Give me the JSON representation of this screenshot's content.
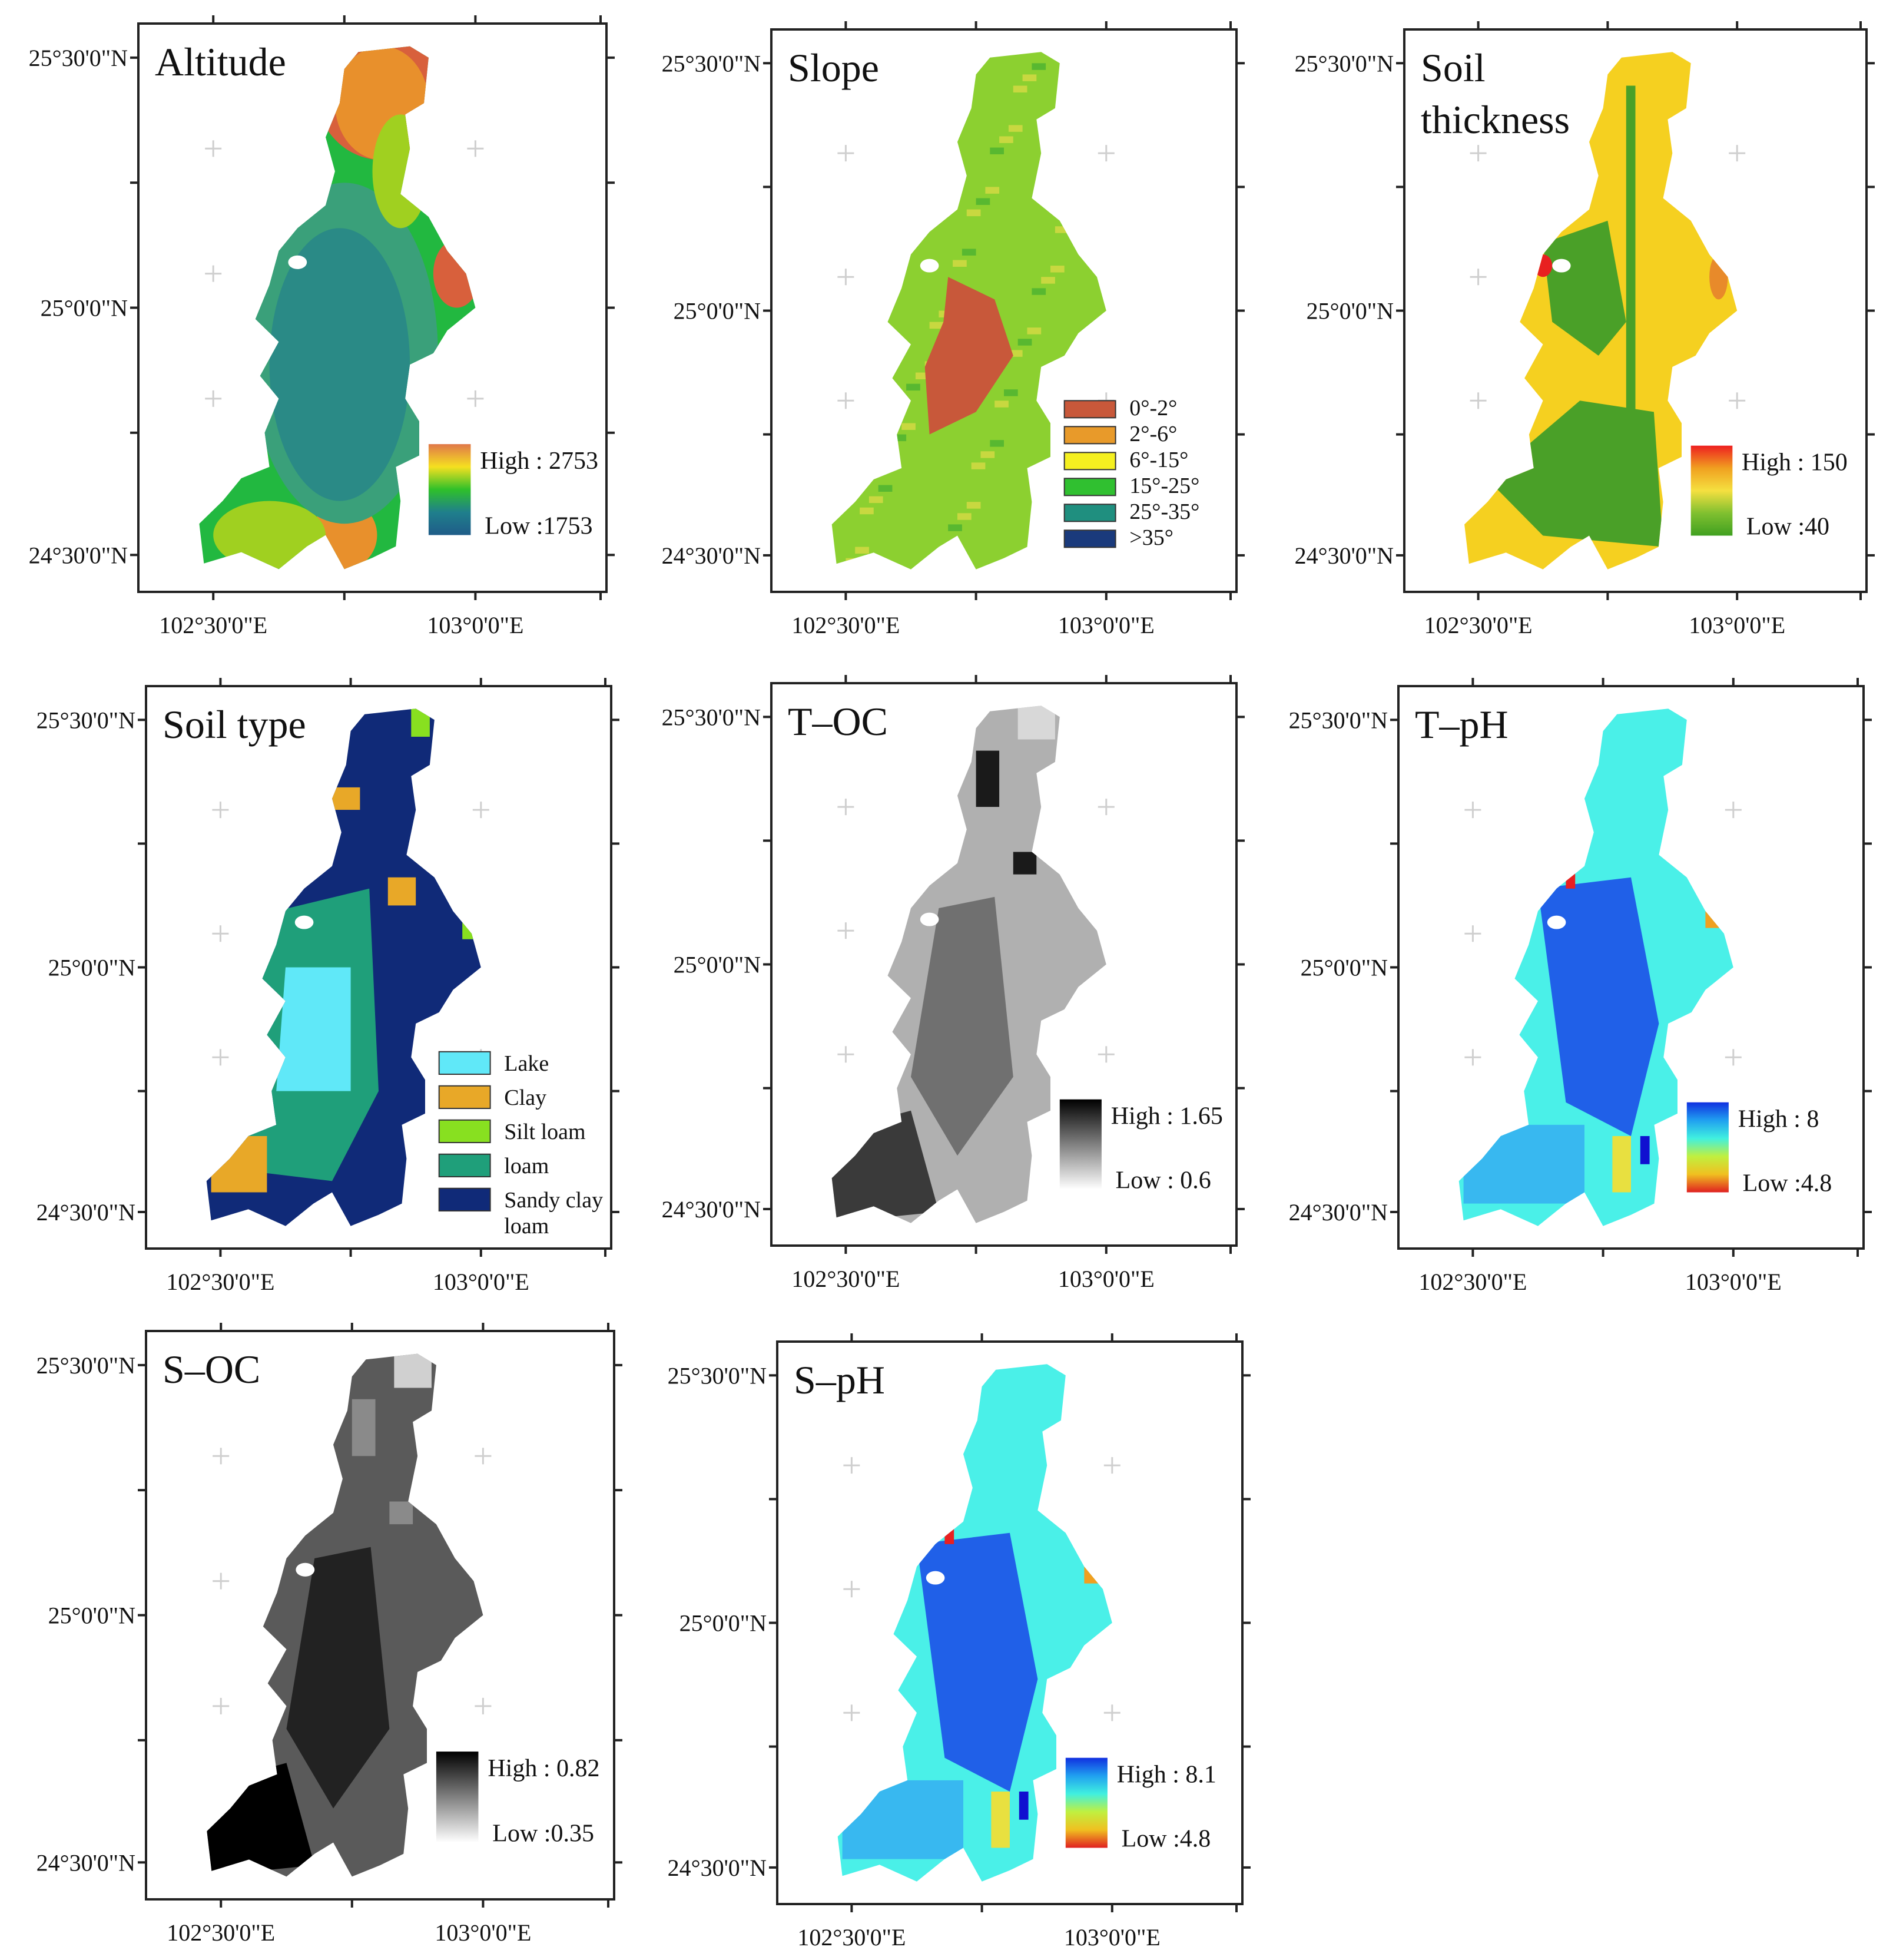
{
  "figure": {
    "panels": [
      {
        "id": "altitude",
        "title": [
          "Altitude"
        ],
        "lat_labels": [
          "25°30'0\"N",
          "25°0'0\"N",
          "24°30'0\"N"
        ],
        "lon_labels": [
          "102°30'0\"E",
          "103°0'0\"E"
        ],
        "legend": {
          "type": "gradient",
          "high": "High : 2753",
          "low": "Low :1753",
          "colors": [
            "#e0784a",
            "#f5e020",
            "#2fc02a",
            "#1f7f8c",
            "#1f5c88"
          ]
        },
        "fill": {
          "kind": "altitude",
          "colors": [
            "#2a8a86",
            "#3aa07a",
            "#22b840",
            "#a0d020",
            "#f0d020",
            "#e8902c",
            "#d8603c"
          ]
        }
      },
      {
        "id": "slope",
        "title": [
          "Slope"
        ],
        "lat_labels": [
          "25°30'0\"N",
          "25°0'0\"N",
          "24°30'0\"N"
        ],
        "lon_labels": [
          "102°30'0\"E",
          "103°0'0\"E"
        ],
        "legend": {
          "type": "classes",
          "items": [
            {
              "label": "0°-2°",
              "color": "#c8583a"
            },
            {
              "label": "2°-6°",
              "color": "#e89a2a"
            },
            {
              "label": "6°-15°",
              "color": "#f5f020"
            },
            {
              "label": "15°-25°",
              "color": "#30c030"
            },
            {
              "label": "25°-35°",
              "color": "#1f8f7f"
            },
            {
              "label": ">35°",
              "color": "#1a3a7c"
            }
          ]
        },
        "fill": {
          "kind": "slope",
          "colors": [
            "#8cd030",
            "#c8d840",
            "#58b830",
            "#c8583a"
          ]
        }
      },
      {
        "id": "soil_thickness",
        "title": [
          "Soil",
          "thickness"
        ],
        "lat_labels": [
          "25°30'0\"N",
          "25°0'0\"N",
          "24°30'0\"N"
        ],
        "lon_labels": [
          "102°30'0\"E",
          "103°0'0\"E"
        ],
        "legend": {
          "type": "gradient",
          "high": "High : 150",
          "low": "Low :40",
          "colors": [
            "#ee2020",
            "#f0a020",
            "#f5e040",
            "#80c030",
            "#40a020"
          ]
        },
        "fill": {
          "kind": "thickness",
          "colors": [
            "#f5d020",
            "#4aa028",
            "#e88a2a",
            "#e82020"
          ]
        }
      },
      {
        "id": "soil_type",
        "title": [
          "Soil type"
        ],
        "lat_labels": [
          "25°30'0\"N",
          "25°0'0\"N",
          "24°30'0\"N"
        ],
        "lon_labels": [
          "102°30'0\"E",
          "103°0'0\"E"
        ],
        "legend": {
          "type": "classes",
          "items": [
            {
              "label": "Lake",
              "color": "#60e8f8"
            },
            {
              "label": "Clay",
              "color": "#e8a828"
            },
            {
              "label": "Silt loam",
              "color": "#88e020"
            },
            {
              "label": "loam",
              "color": "#1f9f7a"
            },
            {
              "label": "Sandy clay",
              "label2": "loam",
              "color": "#102a78"
            }
          ]
        },
        "fill": {
          "kind": "soiltype",
          "colors": [
            "#102a78",
            "#1f9f7a",
            "#e8a828",
            "#88e020",
            "#60e8f8"
          ]
        }
      },
      {
        "id": "t_oc",
        "title": [
          "T–OC"
        ],
        "lat_labels": [
          "25°30'0\"N",
          "25°0'0\"N",
          "24°30'0\"N"
        ],
        "lon_labels": [
          "102°30'0\"E",
          "103°0'0\"E"
        ],
        "legend": {
          "type": "gradient",
          "high": "High : 1.65",
          "low": "Low : 0.6",
          "colors": [
            "#000000",
            "#808080",
            "#ffffff"
          ]
        },
        "fill": {
          "kind": "gray",
          "colors": [
            "#b0b0b0",
            "#707070",
            "#3a3a3a",
            "#1a1a1a",
            "#d8d8d8"
          ]
        }
      },
      {
        "id": "t_ph",
        "title": [
          "T–pH"
        ],
        "lat_labels": [
          "25°30'0\"N",
          "25°0'0\"N",
          "24°30'0\"N"
        ],
        "lon_labels": [
          "102°30'0\"E",
          "103°0'0\"E"
        ],
        "legend": {
          "type": "gradient",
          "high": "High : 8",
          "low": "Low :4.8",
          "colors": [
            "#1030e0",
            "#20a0f0",
            "#40f0e0",
            "#c0f040",
            "#f0c020",
            "#e02020"
          ]
        },
        "fill": {
          "kind": "ph",
          "colors": [
            "#4af0e8",
            "#2060e8",
            "#38b8f0",
            "#e82020",
            "#f0a020",
            "#e8e040",
            "#1010d0"
          ]
        }
      },
      {
        "id": "s_oc",
        "title": [
          "S–OC"
        ],
        "lat_labels": [
          "25°30'0\"N",
          "25°0'0\"N",
          "24°30'0\"N"
        ],
        "lon_labels": [
          "102°30'0\"E",
          "103°0'0\"E"
        ],
        "legend": {
          "type": "gradient",
          "high": "High : 0.82",
          "low": "Low :0.35",
          "colors": [
            "#000000",
            "#808080",
            "#ffffff"
          ]
        },
        "fill": {
          "kind": "gray",
          "colors": [
            "#5a5a5a",
            "#222222",
            "#000000",
            "#8a8a8a",
            "#d0d0d0"
          ]
        }
      },
      {
        "id": "s_ph",
        "title": [
          "S–pH"
        ],
        "lat_labels": [
          "25°30'0\"N",
          "25°0'0\"N",
          "24°30'0\"N"
        ],
        "lon_labels": [
          "102°30'0\"E",
          "103°0'0\"E"
        ],
        "legend": {
          "type": "gradient",
          "high": "High : 8.1",
          "low": "Low :4.8",
          "colors": [
            "#1030e0",
            "#20a0f0",
            "#40f0e0",
            "#c0f040",
            "#f0c020",
            "#e02020"
          ]
        },
        "fill": {
          "kind": "ph",
          "colors": [
            "#4af0e8",
            "#2060e8",
            "#38b8f0",
            "#e82020",
            "#f0a020",
            "#e8e040",
            "#1010d0"
          ]
        }
      }
    ]
  }
}
